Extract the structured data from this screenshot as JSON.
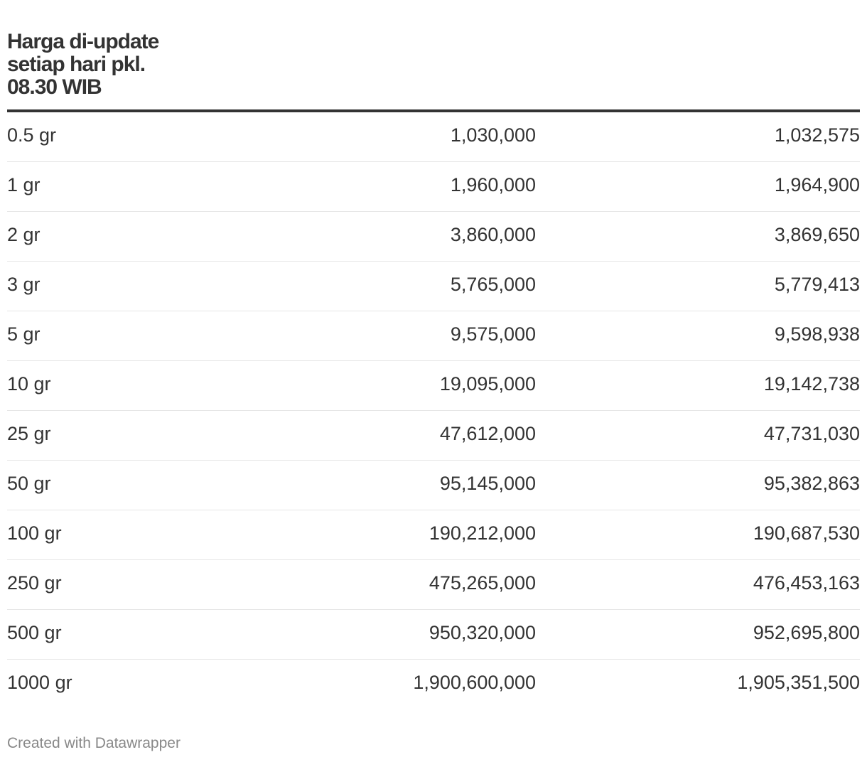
{
  "header": {
    "title": "Harga di-update\nsetiap hari pkl.\n08.30 WIB"
  },
  "rows": [
    {
      "label": "0.5 gr",
      "col1": "1,030,000",
      "col2": "1,032,575"
    },
    {
      "label": "1 gr",
      "col1": "1,960,000",
      "col2": "1,964,900"
    },
    {
      "label": "2 gr",
      "col1": "3,860,000",
      "col2": "3,869,650"
    },
    {
      "label": "3 gr",
      "col1": "5,765,000",
      "col2": "5,779,413"
    },
    {
      "label": "5 gr",
      "col1": "9,575,000",
      "col2": "9,598,938"
    },
    {
      "label": "10 gr",
      "col1": "19,095,000",
      "col2": "19,142,738"
    },
    {
      "label": "25 gr",
      "col1": "47,612,000",
      "col2": "47,731,030"
    },
    {
      "label": "50 gr",
      "col1": "95,145,000",
      "col2": "95,382,863"
    },
    {
      "label": "100 gr",
      "col1": "190,212,000",
      "col2": "190,687,530"
    },
    {
      "label": "250 gr",
      "col1": "475,265,000",
      "col2": "476,453,163"
    },
    {
      "label": "500 gr",
      "col1": "950,320,000",
      "col2": "952,695,800"
    },
    {
      "label": "1000 gr",
      "col1": "1,900,600,000",
      "col2": "1,905,351,500"
    }
  ],
  "footer": {
    "credit": "Created with Datawrapper"
  }
}
